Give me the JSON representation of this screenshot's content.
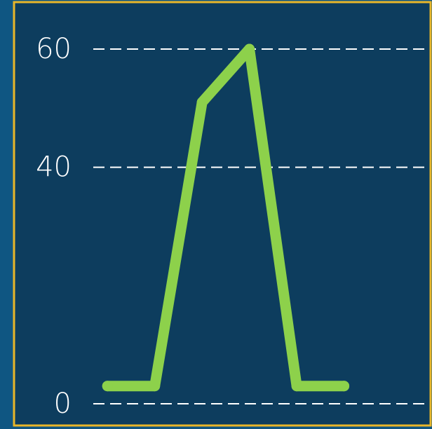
{
  "colors": {
    "outer_background": "#0f5682",
    "plot_background": "#0d3d5e",
    "border": "#e8b629",
    "line": "#8dd14b",
    "grid": "#ffffff",
    "text": "#ffffff"
  },
  "chart_data": {
    "type": "line",
    "title": "",
    "xlabel": "",
    "ylabel": "",
    "grid": true,
    "y_ticks": [
      {
        "value": 0,
        "label": "0"
      },
      {
        "value": 40,
        "label": "40"
      },
      {
        "value": 60,
        "label": "60"
      }
    ],
    "x": [
      0,
      1,
      2,
      3,
      4,
      5
    ],
    "xlim": [
      -0.3,
      6.8
    ],
    "ylim": [
      0,
      60
    ],
    "series": [
      {
        "values": [
          3,
          3,
          51,
          60,
          3,
          3
        ]
      }
    ]
  }
}
